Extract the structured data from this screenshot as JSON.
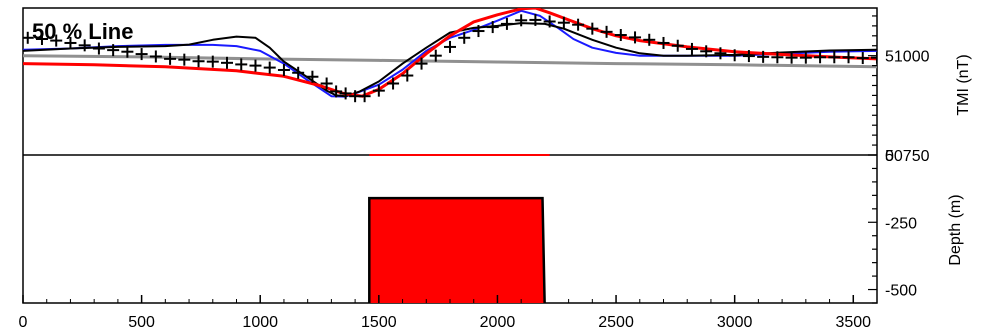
{
  "chart_data": {
    "type": "line",
    "title": "50 % Line",
    "xlabel": "",
    "x_ticks": [
      0,
      500,
      1000,
      1500,
      2000,
      2500,
      3000,
      3500
    ],
    "xlim": [
      0,
      3600
    ],
    "tmi_panel": {
      "ylabel": "TMI (nT)",
      "ylim": [
        50750,
        51120
      ],
      "y_tick_labels": [
        {
          "value": 51000,
          "label": "51000"
        },
        {
          "value": 50750,
          "label": "50750"
        }
      ],
      "series": [
        {
          "marker": "+",
          "color": "#000000",
          "points": [
            [
              20,
              51045
            ],
            [
              80,
              51042
            ],
            [
              140,
              51038
            ],
            [
              200,
              51032
            ],
            [
              260,
              51026
            ],
            [
              320,
              51018
            ],
            [
              380,
              51014
            ],
            [
              440,
              51010
            ],
            [
              500,
              51004
            ],
            [
              560,
              50998
            ],
            [
              620,
              50992
            ],
            [
              680,
              50990
            ],
            [
              740,
              50986
            ],
            [
              800,
              50985
            ],
            [
              860,
              50982
            ],
            [
              920,
              50978
            ],
            [
              980,
              50975
            ],
            [
              1040,
              50970
            ],
            [
              1100,
              50964
            ],
            [
              1160,
              50957
            ],
            [
              1220,
              50947
            ],
            [
              1280,
              50930
            ],
            [
              1320,
              50910
            ],
            [
              1360,
              50905
            ],
            [
              1400,
              50898
            ],
            [
              1440,
              50898
            ],
            [
              1500,
              50912
            ],
            [
              1560,
              50930
            ],
            [
              1620,
              50950
            ],
            [
              1680,
              50980
            ],
            [
              1740,
              51000
            ],
            [
              1800,
              51022
            ],
            [
              1860,
              51045
            ],
            [
              1920,
              51062
            ],
            [
              1980,
              51072
            ],
            [
              2040,
              51080
            ],
            [
              2100,
              51089
            ],
            [
              2160,
              51090
            ],
            [
              2220,
              51086
            ],
            [
              2280,
              51083
            ],
            [
              2340,
              51078
            ],
            [
              2400,
              51068
            ],
            [
              2460,
              51060
            ],
            [
              2520,
              51052
            ],
            [
              2580,
              51046
            ],
            [
              2640,
              51040
            ],
            [
              2700,
              51032
            ],
            [
              2760,
              51025
            ],
            [
              2820,
              51017
            ],
            [
              2880,
              51011
            ],
            [
              2940,
              51006
            ],
            [
              3000,
              51001
            ],
            [
              3060,
              50999
            ],
            [
              3120,
              50997
            ],
            [
              3180,
              50996
            ],
            [
              3240,
              50995
            ],
            [
              3300,
              50995
            ],
            [
              3360,
              50996
            ],
            [
              3420,
              50996
            ],
            [
              3480,
              50996
            ],
            [
              3540,
              50994
            ],
            [
              3600,
              50995
            ]
          ]
        },
        {
          "color": "#1a1aff",
          "points": [
            [
              0,
              51015
            ],
            [
              200,
              51018
            ],
            [
              400,
              51024
            ],
            [
              600,
              51027
            ],
            [
              800,
              51027
            ],
            [
              900,
              51024
            ],
            [
              1000,
              51012
            ],
            [
              1100,
              50980
            ],
            [
              1200,
              50938
            ],
            [
              1300,
              50898
            ],
            [
              1360,
              50897
            ],
            [
              1400,
              50905
            ],
            [
              1500,
              50927
            ],
            [
              1600,
              50965
            ],
            [
              1700,
              51012
            ],
            [
              1800,
              51045
            ],
            [
              1900,
              51065
            ],
            [
              2000,
              51088
            ],
            [
              2100,
              51113
            ],
            [
              2180,
              51100
            ],
            [
              2260,
              51068
            ],
            [
              2320,
              51042
            ],
            [
              2400,
              51020
            ],
            [
              2500,
              51007
            ],
            [
              2600,
              51000
            ],
            [
              2800,
              51000
            ],
            [
              3000,
              51000
            ],
            [
              3200,
              51005
            ],
            [
              3400,
              51010
            ],
            [
              3600,
              51012
            ]
          ]
        },
        {
          "color": "#000000",
          "points": [
            [
              0,
              51012
            ],
            [
              200,
              51018
            ],
            [
              400,
              51022
            ],
            [
              600,
              51024
            ],
            [
              700,
              51028
            ],
            [
              800,
              51040
            ],
            [
              900,
              51048
            ],
            [
              980,
              51045
            ],
            [
              1040,
              51020
            ],
            [
              1100,
              50985
            ],
            [
              1200,
              50945
            ],
            [
              1280,
              50912
            ],
            [
              1320,
              50900
            ],
            [
              1360,
              50898
            ],
            [
              1420,
              50910
            ],
            [
              1500,
              50935
            ],
            [
              1600,
              50980
            ],
            [
              1700,
              51020
            ],
            [
              1800,
              51058
            ],
            [
              1900,
              51070
            ],
            [
              2000,
              51075
            ],
            [
              2100,
              51082
            ],
            [
              2200,
              51080
            ],
            [
              2280,
              51068
            ],
            [
              2400,
              51040
            ],
            [
              2500,
              51020
            ],
            [
              2600,
              51006
            ],
            [
              2700,
              51000
            ],
            [
              2800,
              51000
            ],
            [
              3000,
              51002
            ],
            [
              3200,
              51008
            ],
            [
              3400,
              51013
            ],
            [
              3600,
              51015
            ]
          ]
        },
        {
          "color": "#c0c0c0",
          "points": [
            [
              0,
              51000
            ],
            [
              500,
              50997
            ],
            [
              1000,
              50992
            ],
            [
              1500,
              50988
            ],
            [
              2000,
              50984
            ],
            [
              2500,
              50980
            ],
            [
              3000,
              50977
            ],
            [
              3600,
              50972
            ]
          ]
        },
        {
          "color": "#ff0000",
          "points": [
            [
              0,
              50980
            ],
            [
              300,
              50977
            ],
            [
              600,
              50972
            ],
            [
              900,
              50962
            ],
            [
              1100,
              50948
            ],
            [
              1250,
              50925
            ],
            [
              1350,
              50905
            ],
            [
              1430,
              50898
            ],
            [
              1500,
              50915
            ],
            [
              1600,
              50955
            ],
            [
              1700,
              51005
            ],
            [
              1800,
              51050
            ],
            [
              1900,
              51085
            ],
            [
              2000,
              51103
            ],
            [
              2100,
              51118
            ],
            [
              2160,
              51120
            ],
            [
              2220,
              51108
            ],
            [
              2300,
              51090
            ],
            [
              2400,
              51068
            ],
            [
              2500,
              51050
            ],
            [
              2600,
              51038
            ],
            [
              2800,
              51022
            ],
            [
              3000,
              51010
            ],
            [
              3200,
              51003
            ],
            [
              3400,
              50997
            ],
            [
              3600,
              50992
            ]
          ]
        }
      ]
    },
    "depth_panel": {
      "ylabel": "Depth (m)",
      "ylim": [
        -550,
        0
      ],
      "y_tick_labels": [
        {
          "value": 0,
          "label": "0"
        },
        {
          "value": -250,
          "label": "-250"
        },
        {
          "value": -500,
          "label": "-500"
        }
      ],
      "body": {
        "polygon": [
          [
            1460,
            -160
          ],
          [
            2190,
            -160
          ],
          [
            2200,
            -600
          ],
          [
            1460,
            -600
          ]
        ],
        "fill": "#ff0000",
        "surface_outline": [
          1460,
          2220
        ]
      }
    }
  }
}
